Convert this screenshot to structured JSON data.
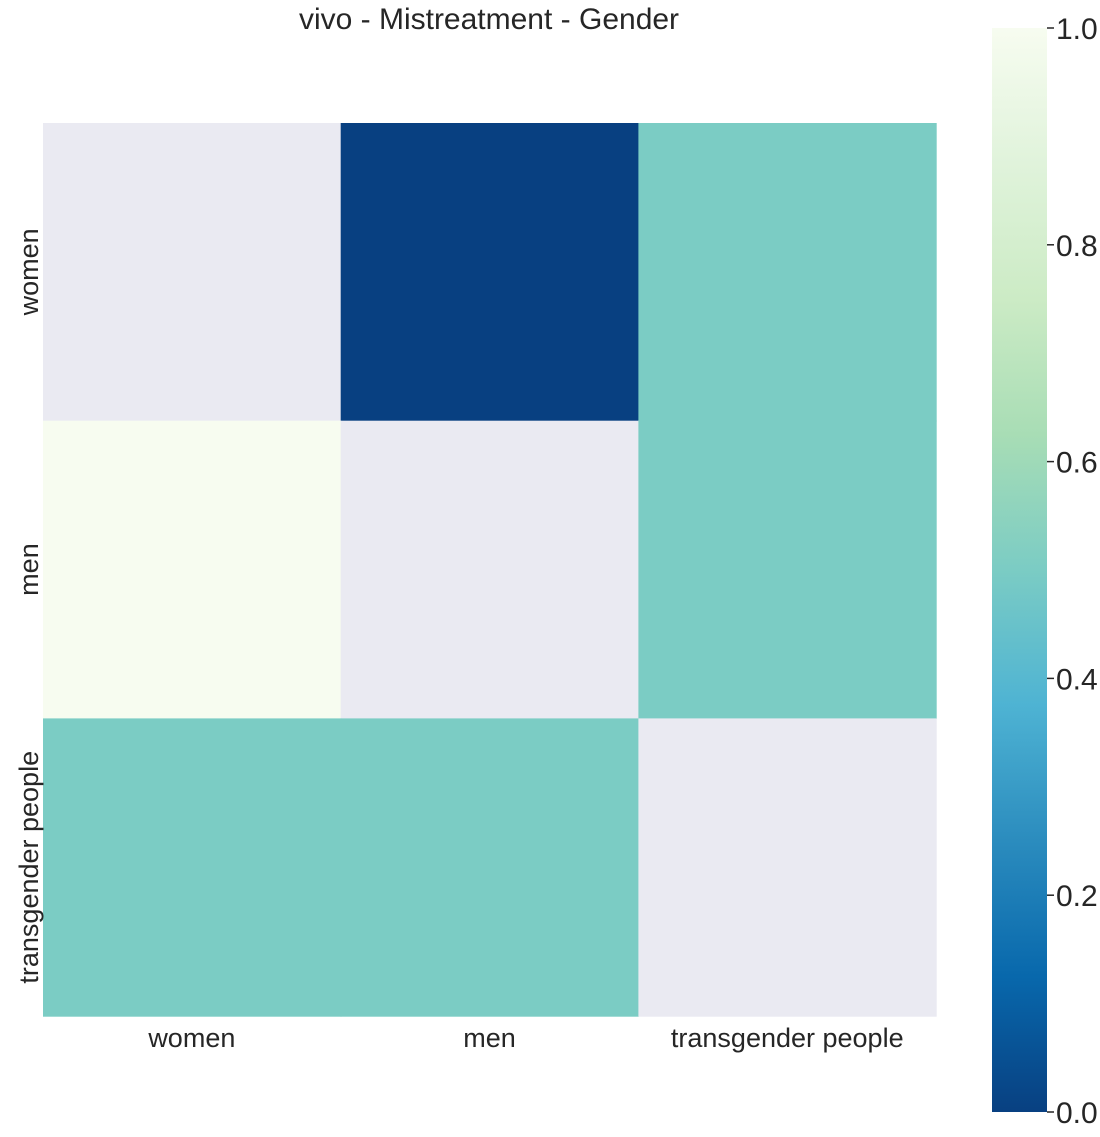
{
  "chart_data": {
    "type": "heatmap",
    "title": "vivo - Mistreatment - Gender",
    "x_categories": [
      "women",
      "men",
      "transgender people"
    ],
    "y_categories": [
      "women",
      "men",
      "transgender people"
    ],
    "values": [
      [
        null,
        0.0,
        0.5
      ],
      [
        1.0,
        null,
        0.5
      ],
      [
        0.5,
        0.5,
        null
      ]
    ],
    "missing_color": "#eaeaf2",
    "colormap": "GnBu",
    "colormap_stops": [
      "#084081",
      "#0868ac",
      "#2b8cbe",
      "#4eb3d3",
      "#7bccc4",
      "#a8ddb5",
      "#ccebc5",
      "#e0f3db",
      "#f7fcf0"
    ],
    "colorbar": {
      "min": 0.0,
      "max": 1.0,
      "ticks": [
        "0.0",
        "0.2",
        "0.4",
        "0.6",
        "0.8",
        "1.0"
      ]
    }
  }
}
